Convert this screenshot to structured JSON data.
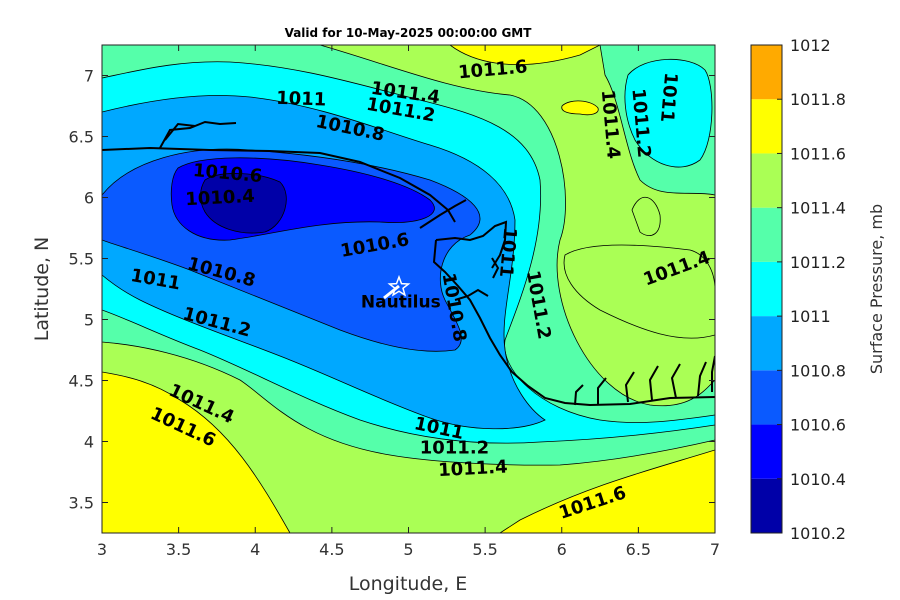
{
  "chart_data": {
    "type": "contour",
    "title": "Valid for 10-May-2025 00:00:00 GMT",
    "xlabel": "Longitude, E",
    "ylabel": "Latitude, N",
    "xlim": [
      3,
      7
    ],
    "ylim": [
      3.25,
      7.25
    ],
    "x_ticks": [
      "3",
      "3.5",
      "4",
      "4.5",
      "5",
      "5.5",
      "6",
      "6.5",
      "7"
    ],
    "y_ticks": [
      "3.5",
      "4",
      "4.5",
      "5",
      "5.5",
      "6",
      "6.5",
      "7"
    ],
    "colorbar": {
      "label": "Surface Pressure, mb",
      "levels": [
        "1010.2",
        "1010.4",
        "1010.6",
        "1010.8",
        "1011",
        "1011.2",
        "1011.4",
        "1011.6",
        "1011.8",
        "1012"
      ],
      "colors": [
        "#0000a8",
        "#0000ff",
        "#0a5aff",
        "#00a8ff",
        "#00ffff",
        "#55ffaa",
        "#aaff55",
        "#ffff00",
        "#ffaa00",
        "#ff5500"
      ]
    },
    "contour_labels": [
      {
        "text": "1011.6",
        "lon": 5.55,
        "lat": 7.05,
        "rot": -5
      },
      {
        "text": "1011.4",
        "lon": 4.98,
        "lat": 6.86,
        "rot": 8
      },
      {
        "text": "1011.2",
        "lon": 4.95,
        "lat": 6.72,
        "rot": 10
      },
      {
        "text": "1011",
        "lon": 4.3,
        "lat": 6.81,
        "rot": 2
      },
      {
        "text": "1010.8",
        "lon": 4.62,
        "lat": 6.57,
        "rot": 12
      },
      {
        "text": "1010.6",
        "lon": 3.82,
        "lat": 6.2,
        "rot": 5
      },
      {
        "text": "1010.4",
        "lon": 3.77,
        "lat": 6.0,
        "rot": -3
      },
      {
        "text": "1010.6",
        "lon": 4.78,
        "lat": 5.61,
        "rot": -10
      },
      {
        "text": "1010.8",
        "lon": 3.78,
        "lat": 5.39,
        "rot": 15
      },
      {
        "text": "1011",
        "lon": 3.35,
        "lat": 5.33,
        "rot": 10
      },
      {
        "text": "1011.2",
        "lon": 3.75,
        "lat": 4.98,
        "rot": 15
      },
      {
        "text": "1011.4",
        "lon": 3.65,
        "lat": 4.31,
        "rot": 25
      },
      {
        "text": "1011.6",
        "lon": 3.53,
        "lat": 4.12,
        "rot": 25
      },
      {
        "text": "1010.8",
        "lon": 5.3,
        "lat": 5.1,
        "rot": 80
      },
      {
        "text": "1011",
        "lon": 5.65,
        "lat": 5.55,
        "rot": 95
      },
      {
        "text": "1011.2",
        "lon": 5.85,
        "lat": 5.12,
        "rot": 80
      },
      {
        "text": "1011.4",
        "lon": 6.32,
        "lat": 6.6,
        "rot": 85
      },
      {
        "text": "1011.2",
        "lon": 6.52,
        "lat": 6.61,
        "rot": 85
      },
      {
        "text": "1011",
        "lon": 6.7,
        "lat": 6.82,
        "rot": 95
      },
      {
        "text": "1011.4",
        "lon": 6.75,
        "lat": 5.42,
        "rot": -20
      },
      {
        "text": "1011",
        "lon": 5.2,
        "lat": 4.11,
        "rot": 12
      },
      {
        "text": "1011.2",
        "lon": 5.3,
        "lat": 3.95,
        "rot": 0
      },
      {
        "text": "1011.4",
        "lon": 5.42,
        "lat": 3.78,
        "rot": -3
      },
      {
        "text": "1011.6",
        "lon": 6.2,
        "lat": 3.5,
        "rot": -18
      }
    ],
    "marker": {
      "label": "Nautilus",
      "lon": 4.95,
      "lat": 5.28
    }
  }
}
